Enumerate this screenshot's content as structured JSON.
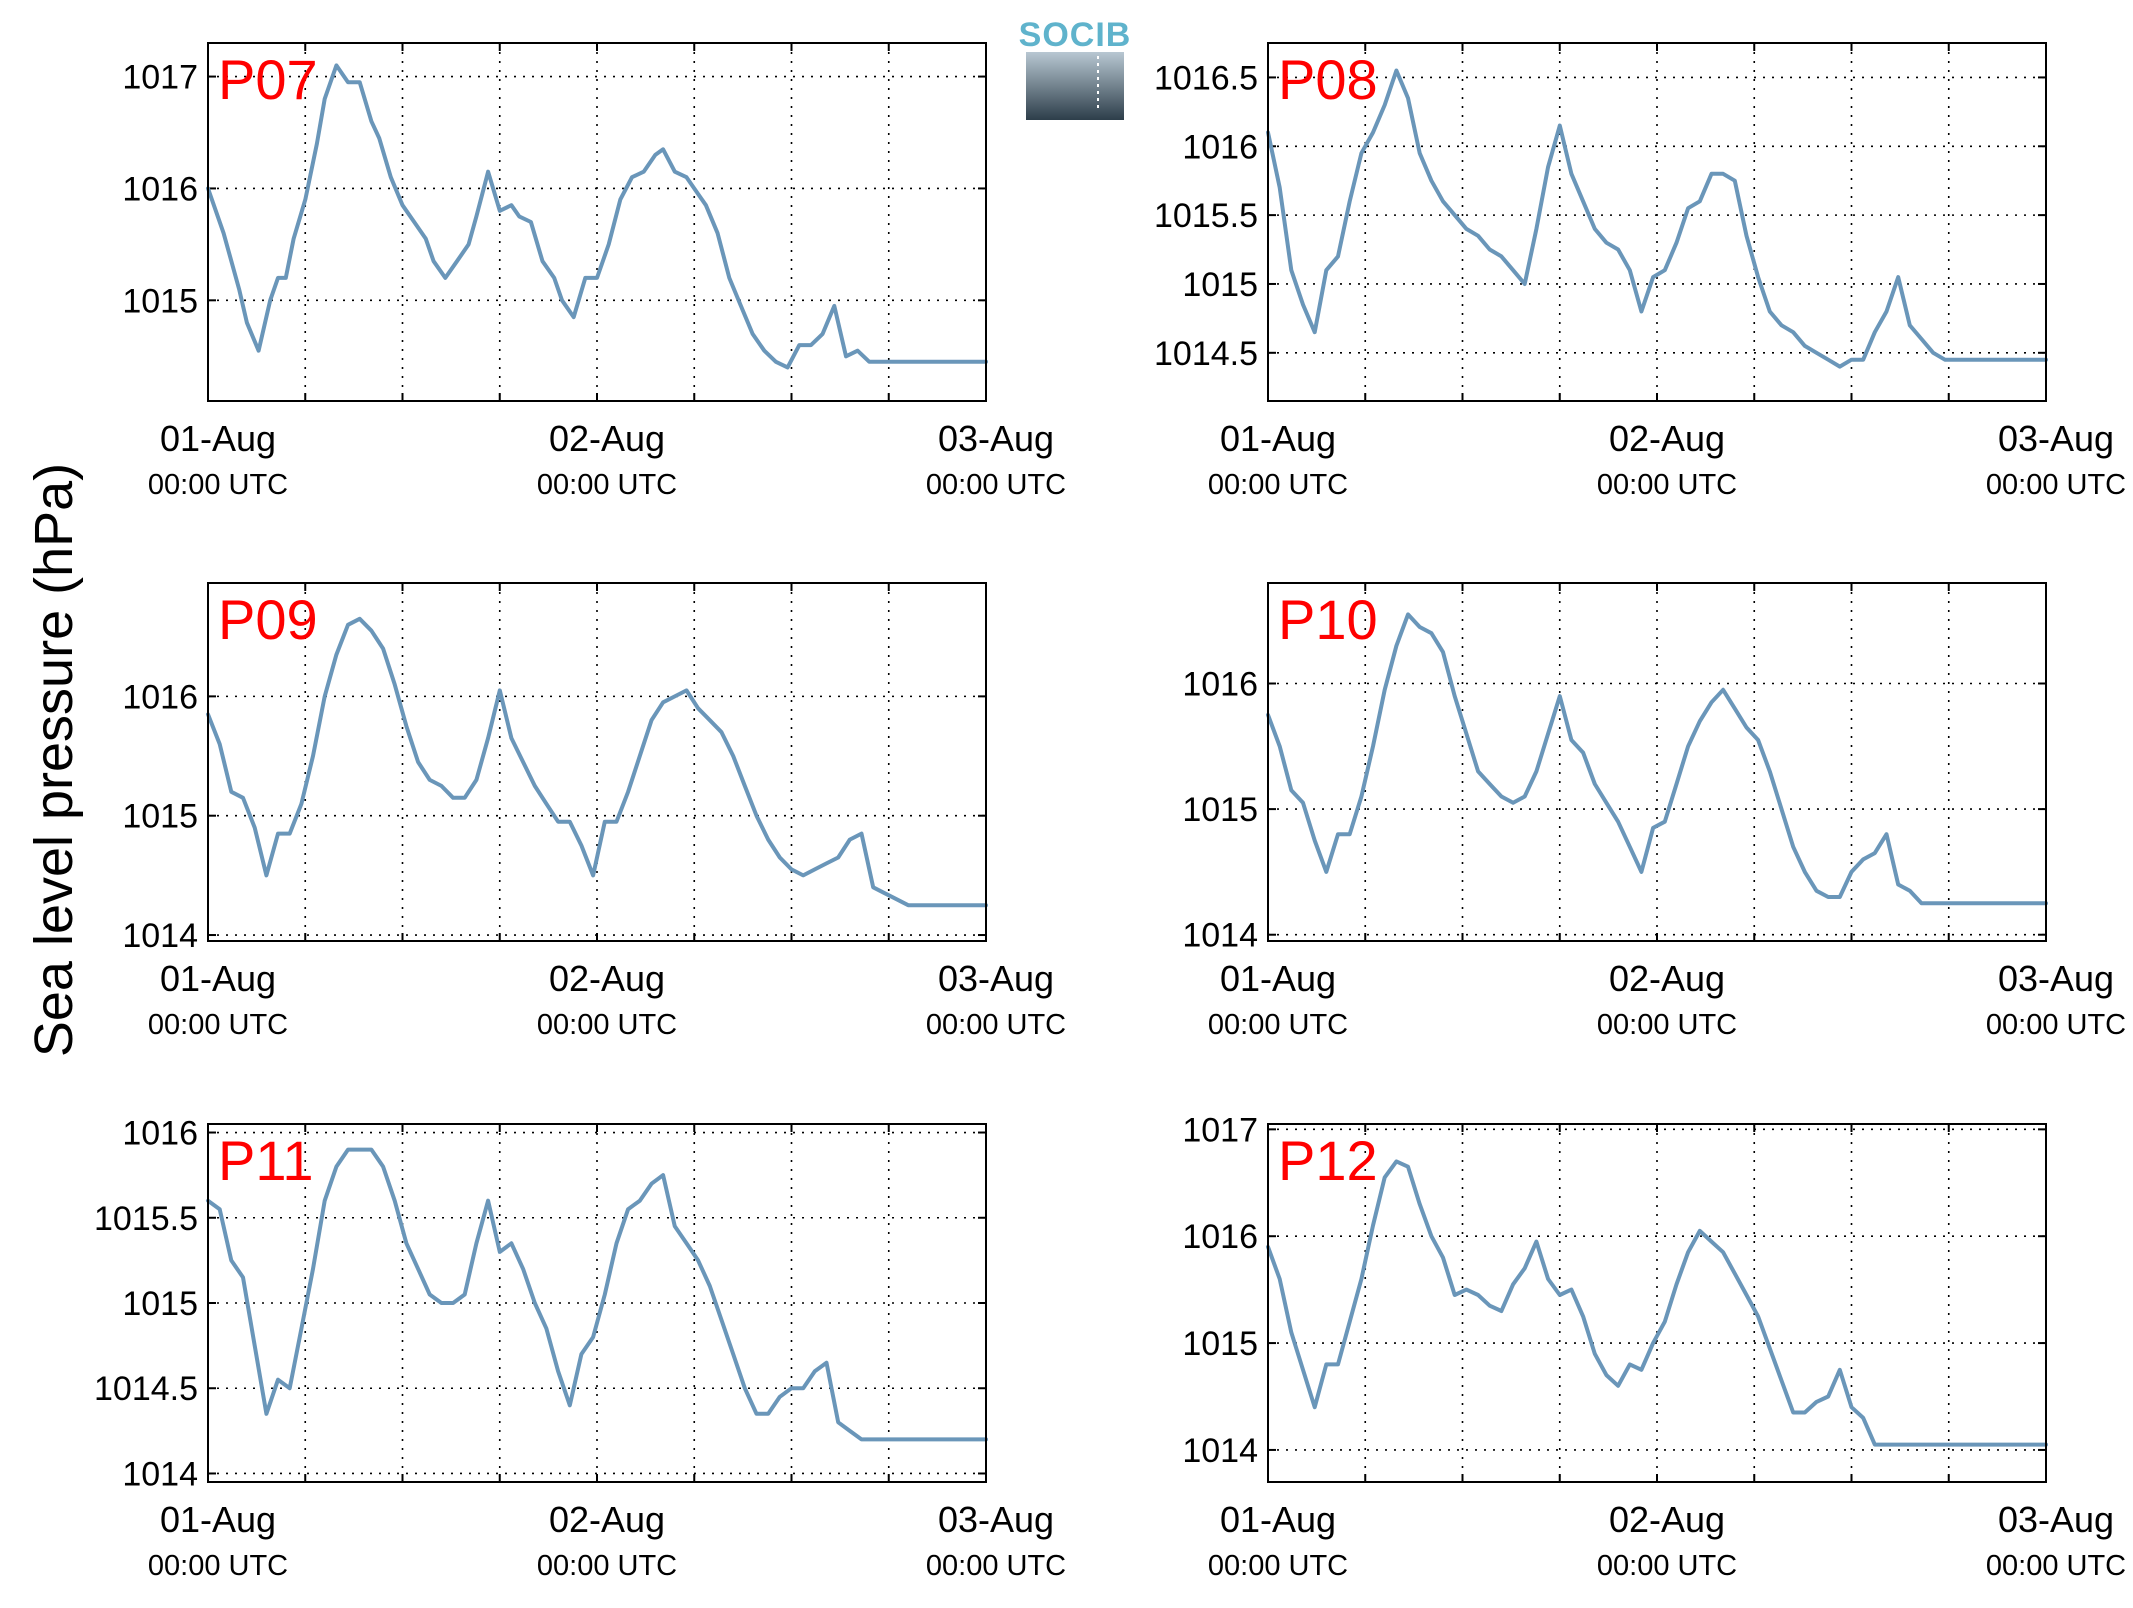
{
  "figure": {
    "ylabel": "Sea level pressure (hPa)",
    "logo_text": "SOCIB",
    "colors": {
      "series": "#6a96b9",
      "panel_label": "#ff0000",
      "logo": "#5fb3cc"
    }
  },
  "chart_data": [
    {
      "type": "line",
      "label": "P07",
      "ylim": [
        1014.1,
        1017.3
      ],
      "yticks": [
        "1015",
        "1016",
        "1017"
      ],
      "x_days": [
        0,
        0.04,
        0.08,
        0.1,
        0.13,
        0.16,
        0.18,
        0.2,
        0.22,
        0.25,
        0.28,
        0.3,
        0.33,
        0.36,
        0.39,
        0.42,
        0.44,
        0.47,
        0.5,
        0.53,
        0.56,
        0.58,
        0.61,
        0.64,
        0.67,
        0.69,
        0.72,
        0.75,
        0.78,
        0.8,
        0.83,
        0.86,
        0.89,
        0.91,
        0.94,
        0.97,
        1.0,
        1.03,
        1.06,
        1.09,
        1.12,
        1.15,
        1.17,
        1.2,
        1.23,
        1.26,
        1.28,
        1.31,
        1.34,
        1.37,
        1.4,
        1.43,
        1.46,
        1.49,
        1.52,
        1.55,
        1.58,
        1.61,
        1.64,
        1.67,
        1.7,
        1.73,
        1.76,
        1.79,
        1.82,
        1.85,
        1.88,
        1.91,
        1.94,
        1.97,
        2.0
      ],
      "y": [
        1016.0,
        1015.6,
        1015.1,
        1014.8,
        1014.55,
        1015.0,
        1015.2,
        1015.2,
        1015.55,
        1015.9,
        1016.4,
        1016.8,
        1017.1,
        1016.95,
        1016.95,
        1016.6,
        1016.45,
        1016.1,
        1015.85,
        1015.7,
        1015.55,
        1015.35,
        1015.2,
        1015.35,
        1015.5,
        1015.75,
        1016.15,
        1015.8,
        1015.85,
        1015.75,
        1015.7,
        1015.35,
        1015.2,
        1015.0,
        1014.85,
        1015.2,
        1015.2,
        1015.5,
        1015.9,
        1016.1,
        1016.15,
        1016.3,
        1016.35,
        1016.15,
        1016.1,
        1015.95,
        1015.85,
        1015.6,
        1015.2,
        1014.95,
        1014.7,
        1014.55,
        1014.45,
        1014.4,
        1014.6,
        1014.6,
        1014.7,
        1014.95,
        1014.5,
        1014.55,
        1014.45,
        1014.45,
        1014.45,
        1014.45,
        1014.45,
        1014.45,
        1014.45,
        1014.45,
        1014.45,
        1014.45,
        1014.45
      ],
      "xticks": [
        {
          "date": "01-Aug",
          "time": "00:00 UTC"
        },
        {
          "date": "02-Aug",
          "time": "00:00 UTC"
        },
        {
          "date": "03-Aug",
          "time": "00:00 UTC"
        }
      ]
    },
    {
      "type": "line",
      "label": "P08",
      "ylim": [
        1014.15,
        1016.75
      ],
      "yticks": [
        "1014.5",
        "1015",
        "1015.5",
        "1016",
        "1016.5"
      ],
      "x_days": [
        0,
        0.03,
        0.06,
        0.09,
        0.12,
        0.15,
        0.18,
        0.21,
        0.24,
        0.27,
        0.3,
        0.33,
        0.36,
        0.39,
        0.42,
        0.45,
        0.48,
        0.51,
        0.54,
        0.57,
        0.6,
        0.63,
        0.66,
        0.69,
        0.72,
        0.75,
        0.78,
        0.81,
        0.84,
        0.87,
        0.9,
        0.93,
        0.96,
        0.99,
        1.02,
        1.05,
        1.08,
        1.11,
        1.14,
        1.17,
        1.2,
        1.23,
        1.26,
        1.29,
        1.32,
        1.35,
        1.38,
        1.41,
        1.44,
        1.47,
        1.5,
        1.53,
        1.56,
        1.59,
        1.62,
        1.65,
        1.68,
        1.71,
        1.74,
        1.77,
        1.8,
        1.83,
        1.86,
        1.89,
        1.92,
        1.95,
        1.98,
        2.0
      ],
      "y": [
        1016.1,
        1015.7,
        1015.1,
        1014.85,
        1014.65,
        1015.1,
        1015.2,
        1015.6,
        1015.95,
        1016.1,
        1016.3,
        1016.55,
        1016.35,
        1015.95,
        1015.75,
        1015.6,
        1015.5,
        1015.4,
        1015.35,
        1015.25,
        1015.2,
        1015.1,
        1015.0,
        1015.4,
        1015.85,
        1016.15,
        1015.8,
        1015.6,
        1015.4,
        1015.3,
        1015.25,
        1015.1,
        1014.8,
        1015.05,
        1015.1,
        1015.3,
        1015.55,
        1015.6,
        1015.8,
        1015.8,
        1015.75,
        1015.35,
        1015.05,
        1014.8,
        1014.7,
        1014.65,
        1014.55,
        1014.5,
        1014.45,
        1014.4,
        1014.45,
        1014.45,
        1014.65,
        1014.8,
        1015.05,
        1014.7,
        1014.6,
        1014.5,
        1014.45,
        1014.45,
        1014.45,
        1014.45,
        1014.45,
        1014.45,
        1014.45,
        1014.45,
        1014.45,
        1014.45
      ],
      "xticks": [
        {
          "date": "01-Aug",
          "time": "00:00 UTC"
        },
        {
          "date": "02-Aug",
          "time": "00:00 UTC"
        },
        {
          "date": "03-Aug",
          "time": "00:00 UTC"
        }
      ]
    },
    {
      "type": "line",
      "label": "P09",
      "ylim": [
        1013.95,
        1016.95
      ],
      "yticks": [
        "1014",
        "1015",
        "1016"
      ],
      "x_days": [
        0,
        0.03,
        0.06,
        0.09,
        0.12,
        0.15,
        0.18,
        0.21,
        0.24,
        0.27,
        0.3,
        0.33,
        0.36,
        0.39,
        0.42,
        0.45,
        0.48,
        0.51,
        0.54,
        0.57,
        0.6,
        0.63,
        0.66,
        0.69,
        0.72,
        0.75,
        0.78,
        0.81,
        0.84,
        0.87,
        0.9,
        0.93,
        0.96,
        0.99,
        1.02,
        1.05,
        1.08,
        1.11,
        1.14,
        1.17,
        1.2,
        1.23,
        1.26,
        1.29,
        1.32,
        1.35,
        1.38,
        1.41,
        1.44,
        1.47,
        1.5,
        1.53,
        1.56,
        1.59,
        1.62,
        1.65,
        1.68,
        1.71,
        1.74,
        1.77,
        1.8,
        1.83,
        1.86,
        1.89,
        1.92,
        1.95,
        1.98,
        2.0
      ],
      "y": [
        1015.85,
        1015.6,
        1015.2,
        1015.15,
        1014.9,
        1014.5,
        1014.85,
        1014.85,
        1015.1,
        1015.5,
        1016.0,
        1016.35,
        1016.6,
        1016.65,
        1016.55,
        1016.4,
        1016.1,
        1015.75,
        1015.45,
        1015.3,
        1015.25,
        1015.15,
        1015.15,
        1015.3,
        1015.65,
        1016.05,
        1015.65,
        1015.45,
        1015.25,
        1015.1,
        1014.95,
        1014.95,
        1014.75,
        1014.5,
        1014.95,
        1014.95,
        1015.2,
        1015.5,
        1015.8,
        1015.95,
        1016.0,
        1016.05,
        1015.9,
        1015.8,
        1015.7,
        1015.5,
        1015.25,
        1015.0,
        1014.8,
        1014.65,
        1014.55,
        1014.5,
        1014.55,
        1014.6,
        1014.65,
        1014.8,
        1014.85,
        1014.4,
        1014.35,
        1014.3,
        1014.25,
        1014.25,
        1014.25,
        1014.25,
        1014.25,
        1014.25,
        1014.25,
        1014.25
      ],
      "xticks": [
        {
          "date": "01-Aug",
          "time": "00:00 UTC"
        },
        {
          "date": "02-Aug",
          "time": "00:00 UTC"
        },
        {
          "date": "03-Aug",
          "time": "00:00 UTC"
        }
      ]
    },
    {
      "type": "line",
      "label": "P10",
      "ylim": [
        1013.95,
        1016.8
      ],
      "yticks": [
        "1014",
        "1015",
        "1016"
      ],
      "x_days": [
        0,
        0.03,
        0.06,
        0.09,
        0.12,
        0.15,
        0.18,
        0.21,
        0.24,
        0.27,
        0.3,
        0.33,
        0.36,
        0.39,
        0.42,
        0.45,
        0.48,
        0.51,
        0.54,
        0.57,
        0.6,
        0.63,
        0.66,
        0.69,
        0.72,
        0.75,
        0.78,
        0.81,
        0.84,
        0.87,
        0.9,
        0.93,
        0.96,
        0.99,
        1.02,
        1.05,
        1.08,
        1.11,
        1.14,
        1.17,
        1.2,
        1.23,
        1.26,
        1.29,
        1.32,
        1.35,
        1.38,
        1.41,
        1.44,
        1.47,
        1.5,
        1.53,
        1.56,
        1.59,
        1.62,
        1.65,
        1.68,
        1.71,
        1.74,
        1.77,
        1.8,
        1.83,
        1.86,
        1.89,
        1.92,
        1.95,
        1.98,
        2.0
      ],
      "y": [
        1015.75,
        1015.5,
        1015.15,
        1015.05,
        1014.75,
        1014.5,
        1014.8,
        1014.8,
        1015.1,
        1015.5,
        1015.95,
        1016.3,
        1016.55,
        1016.45,
        1016.4,
        1016.25,
        1015.9,
        1015.6,
        1015.3,
        1015.2,
        1015.1,
        1015.05,
        1015.1,
        1015.3,
        1015.6,
        1015.9,
        1015.55,
        1015.45,
        1015.2,
        1015.05,
        1014.9,
        1014.7,
        1014.5,
        1014.85,
        1014.9,
        1015.2,
        1015.5,
        1015.7,
        1015.85,
        1015.95,
        1015.8,
        1015.65,
        1015.55,
        1015.3,
        1015.0,
        1014.7,
        1014.5,
        1014.35,
        1014.3,
        1014.3,
        1014.5,
        1014.6,
        1014.65,
        1014.8,
        1014.4,
        1014.35,
        1014.25,
        1014.25,
        1014.25,
        1014.25,
        1014.25,
        1014.25,
        1014.25,
        1014.25,
        1014.25,
        1014.25,
        1014.25,
        1014.25
      ],
      "xticks": [
        {
          "date": "01-Aug",
          "time": "00:00 UTC"
        },
        {
          "date": "02-Aug",
          "time": "00:00 UTC"
        },
        {
          "date": "03-Aug",
          "time": "00:00 UTC"
        }
      ]
    },
    {
      "type": "line",
      "label": "P11",
      "ylim": [
        1013.95,
        1016.05
      ],
      "yticks": [
        "1014",
        "1014.5",
        "1015",
        "1015.5",
        "1016"
      ],
      "x_days": [
        0,
        0.03,
        0.06,
        0.09,
        0.12,
        0.15,
        0.18,
        0.21,
        0.24,
        0.27,
        0.3,
        0.33,
        0.36,
        0.39,
        0.42,
        0.45,
        0.48,
        0.51,
        0.54,
        0.57,
        0.6,
        0.63,
        0.66,
        0.69,
        0.72,
        0.75,
        0.78,
        0.81,
        0.84,
        0.87,
        0.9,
        0.93,
        0.96,
        0.99,
        1.02,
        1.05,
        1.08,
        1.11,
        1.14,
        1.17,
        1.2,
        1.23,
        1.26,
        1.29,
        1.32,
        1.35,
        1.38,
        1.41,
        1.44,
        1.47,
        1.5,
        1.53,
        1.56,
        1.59,
        1.62,
        1.65,
        1.68,
        1.71,
        1.74,
        1.77,
        1.8,
        1.83,
        1.86,
        1.89,
        1.92,
        1.95,
        1.98,
        2.0
      ],
      "y": [
        1015.6,
        1015.55,
        1015.25,
        1015.15,
        1014.75,
        1014.35,
        1014.55,
        1014.5,
        1014.85,
        1015.2,
        1015.6,
        1015.8,
        1015.9,
        1015.9,
        1015.9,
        1015.8,
        1015.6,
        1015.35,
        1015.2,
        1015.05,
        1015.0,
        1015.0,
        1015.05,
        1015.35,
        1015.6,
        1015.3,
        1015.35,
        1015.2,
        1015.0,
        1014.85,
        1014.6,
        1014.4,
        1014.7,
        1014.8,
        1015.05,
        1015.35,
        1015.55,
        1015.6,
        1015.7,
        1015.75,
        1015.45,
        1015.35,
        1015.25,
        1015.1,
        1014.9,
        1014.7,
        1014.5,
        1014.35,
        1014.35,
        1014.45,
        1014.5,
        1014.5,
        1014.6,
        1014.65,
        1014.3,
        1014.25,
        1014.2,
        1014.2,
        1014.2,
        1014.2,
        1014.2,
        1014.2,
        1014.2,
        1014.2,
        1014.2,
        1014.2,
        1014.2,
        1014.2
      ],
      "xticks": [
        {
          "date": "01-Aug",
          "time": "00:00 UTC"
        },
        {
          "date": "02-Aug",
          "time": "00:00 UTC"
        },
        {
          "date": "03-Aug",
          "time": "00:00 UTC"
        }
      ]
    },
    {
      "type": "line",
      "label": "P12",
      "ylim": [
        1013.7,
        1017.05
      ],
      "yticks": [
        "1014",
        "1015",
        "1016",
        "1017"
      ],
      "x_days": [
        0,
        0.03,
        0.06,
        0.09,
        0.12,
        0.15,
        0.18,
        0.21,
        0.24,
        0.27,
        0.3,
        0.33,
        0.36,
        0.39,
        0.42,
        0.45,
        0.48,
        0.51,
        0.54,
        0.57,
        0.6,
        0.63,
        0.66,
        0.69,
        0.72,
        0.75,
        0.78,
        0.81,
        0.84,
        0.87,
        0.9,
        0.93,
        0.96,
        0.99,
        1.02,
        1.05,
        1.08,
        1.11,
        1.14,
        1.17,
        1.2,
        1.23,
        1.26,
        1.29,
        1.32,
        1.35,
        1.38,
        1.41,
        1.44,
        1.47,
        1.5,
        1.53,
        1.56,
        1.59,
        1.62,
        1.65,
        1.68,
        1.71,
        1.74,
        1.77,
        1.8,
        1.83,
        1.86,
        1.89,
        1.92,
        1.95,
        1.98,
        2.0
      ],
      "y": [
        1015.9,
        1015.6,
        1015.1,
        1014.75,
        1014.4,
        1014.8,
        1014.8,
        1015.2,
        1015.6,
        1016.1,
        1016.55,
        1016.7,
        1016.65,
        1016.3,
        1016.0,
        1015.8,
        1015.45,
        1015.5,
        1015.45,
        1015.35,
        1015.3,
        1015.55,
        1015.7,
        1015.95,
        1015.6,
        1015.45,
        1015.5,
        1015.25,
        1014.9,
        1014.7,
        1014.6,
        1014.8,
        1014.75,
        1015.0,
        1015.2,
        1015.55,
        1015.85,
        1016.05,
        1015.95,
        1015.85,
        1015.65,
        1015.45,
        1015.25,
        1014.95,
        1014.65,
        1014.35,
        1014.35,
        1014.45,
        1014.5,
        1014.75,
        1014.4,
        1014.3,
        1014.05,
        1014.05,
        1014.05,
        1014.05,
        1014.05,
        1014.05,
        1014.05,
        1014.05,
        1014.05,
        1014.05,
        1014.05,
        1014.05,
        1014.05,
        1014.05,
        1014.05,
        1014.05
      ],
      "xticks": [
        {
          "date": "01-Aug",
          "time": "00:00 UTC"
        },
        {
          "date": "02-Aug",
          "time": "00:00 UTC"
        },
        {
          "date": "03-Aug",
          "time": "00:00 UTC"
        }
      ]
    }
  ]
}
